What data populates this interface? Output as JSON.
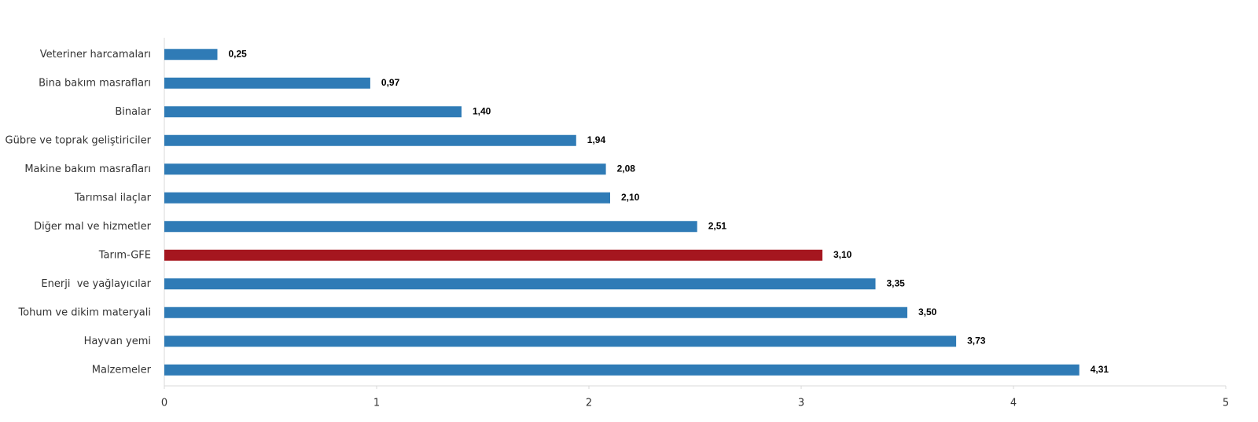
{
  "chart_data": {
    "type": "bar",
    "orientation": "horizontal",
    "categories": [
      "Veteriner harcamaları",
      "Bina bakım masrafları",
      "Binalar",
      "Gübre ve toprak geliştiriciler",
      "Makine bakım masrafları",
      "Tarımsal ilaçlar",
      "Diğer mal ve hizmetler",
      "Tarım-GFE",
      "Enerji  ve yağlayıcılar",
      "Tohum ve dikim materyali",
      "Hayvan yemi",
      "Malzemeler"
    ],
    "values": [
      0.25,
      0.97,
      1.4,
      1.94,
      2.08,
      2.1,
      2.51,
      3.1,
      3.35,
      3.5,
      3.73,
      4.31
    ],
    "value_labels": [
      "0,25",
      "0,97",
      "1,40",
      "1,94",
      "2,08",
      "2,10",
      "2,51",
      "3,10",
      "3,35",
      "3,50",
      "3,73",
      "4,31"
    ],
    "colors": [
      "#2f7bb6",
      "#2f7bb6",
      "#2f7bb6",
      "#2f7bb6",
      "#2f7bb6",
      "#2f7bb6",
      "#2f7bb6",
      "#a5161f",
      "#2f7bb6",
      "#2f7bb6",
      "#2f7bb6",
      "#2f7bb6"
    ],
    "xlim": [
      0,
      5
    ],
    "xticks": [
      0,
      1,
      2,
      3,
      4,
      5
    ],
    "grid": false
  }
}
